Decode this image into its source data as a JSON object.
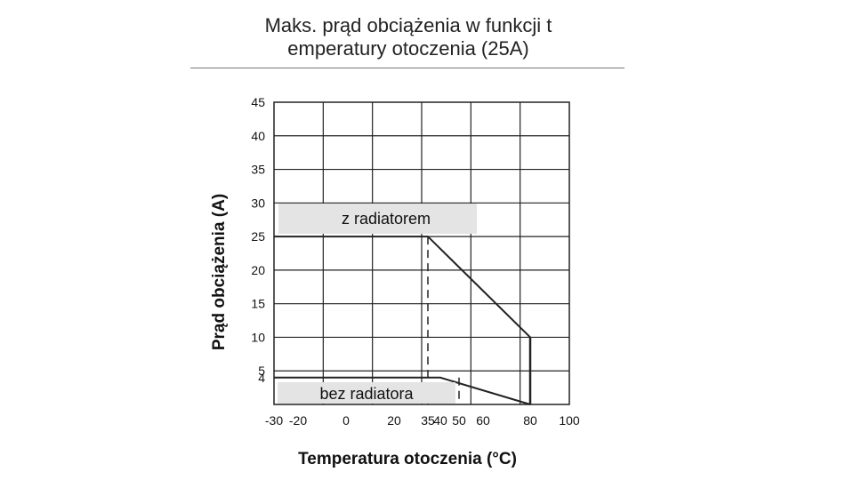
{
  "chart_data": {
    "type": "line",
    "title_line1": "Maks. prąd obciążenia w funkcji t",
    "title_line2": "emperatury otoczenia (25A)",
    "xlabel": "Temperatura otoczenia (°C)",
    "ylabel": "Prąd obciążenia (A)",
    "x_ticks": [
      -30,
      -20,
      0,
      20,
      35,
      40,
      50,
      60,
      80,
      100
    ],
    "x_tick_labels": [
      "-30",
      "-20",
      "0",
      "20",
      "35",
      "40",
      "50",
      "60",
      "80",
      "100"
    ],
    "y_ticks": [
      4,
      5,
      10,
      15,
      20,
      25,
      30,
      35,
      40,
      45
    ],
    "y_tick_labels": [
      "4",
      "5",
      "10",
      "15",
      "20",
      "25",
      "30",
      "35",
      "40",
      "45"
    ],
    "xlim": [
      -30,
      100
    ],
    "ylim": [
      0,
      45
    ],
    "grid": true,
    "series": [
      {
        "name": "z radiatorem",
        "x": [
          -30,
          35,
          80,
          80
        ],
        "y": [
          25,
          25,
          10,
          0
        ],
        "dashed_drop_at_x": 35
      },
      {
        "name": "bez radiatora",
        "x": [
          -30,
          40,
          80
        ],
        "y": [
          4,
          4,
          0
        ],
        "dashed_drop_at_x": 50
      }
    ]
  }
}
